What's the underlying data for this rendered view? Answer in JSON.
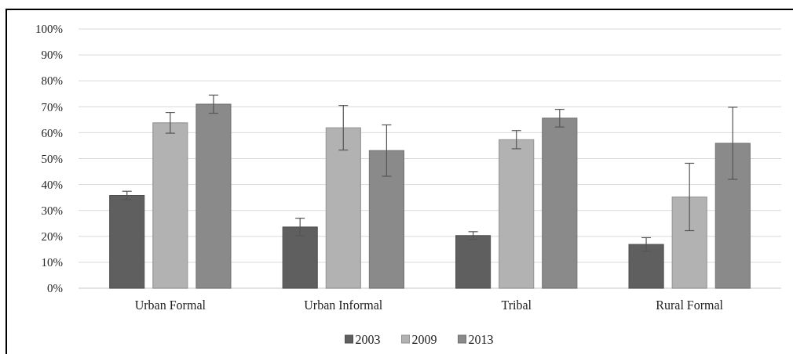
{
  "chart_data": {
    "type": "bar",
    "categories": [
      "Urban Formal",
      "Urban Informal",
      "Tribal",
      "Rural Formal"
    ],
    "series": [
      {
        "name": "2003",
        "color": "#5f5f5f",
        "values": [
          35.8,
          23.6,
          20.3,
          16.9
        ],
        "errors": [
          1.6,
          3.4,
          1.5,
          2.6
        ]
      },
      {
        "name": "2009",
        "color": "#b2b2b2",
        "values": [
          63.8,
          61.9,
          57.3,
          35.2
        ],
        "errors": [
          4,
          8.6,
          3.5,
          13
        ]
      },
      {
        "name": "2013",
        "color": "#8a8a8a",
        "values": [
          71,
          53.1,
          65.6,
          55.9
        ],
        "errors": [
          3.5,
          9.9,
          3.4,
          13.9
        ]
      }
    ],
    "ylim": [
      0,
      100
    ],
    "yticks": [
      {
        "value": 0,
        "label": "0%"
      },
      {
        "value": 10,
        "label": "10%"
      },
      {
        "value": 20,
        "label": "20%"
      },
      {
        "value": 30,
        "label": "30%"
      },
      {
        "value": 40,
        "label": "40%"
      },
      {
        "value": 50,
        "label": "50%"
      },
      {
        "value": 60,
        "label": "60%"
      },
      {
        "value": 70,
        "label": "70%"
      },
      {
        "value": 80,
        "label": "80%"
      },
      {
        "value": 90,
        "label": "90%"
      },
      {
        "value": 100,
        "label": "100%"
      }
    ],
    "grid": "y",
    "legend": "bottom"
  }
}
